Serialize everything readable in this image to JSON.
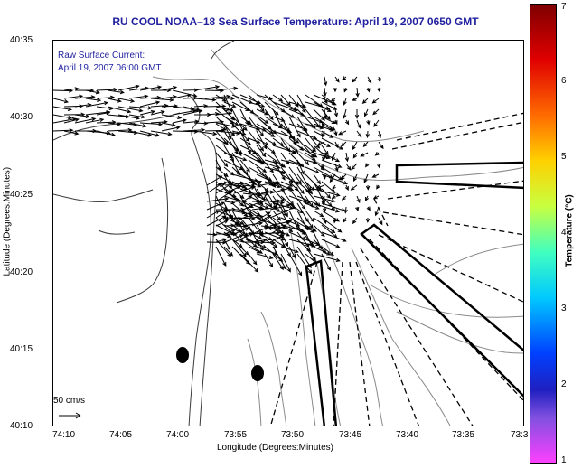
{
  "title": "RU COOL  NOAA–18  Sea Surface Temperature:  April 19, 2007 0650 GMT",
  "overlay": {
    "line1": "Raw Surface Current:",
    "line2": "April 19, 2007 06:00 GMT"
  },
  "scale": {
    "label": "50 cm/s"
  },
  "axes": {
    "xlabel": "Longitude (Degrees:Minutes)",
    "ylabel": "Latitude (Degrees:Minutes)",
    "x_ticks": [
      "74:10",
      "74:05",
      "74:00",
      "73:55",
      "73:50",
      "73:45",
      "73:40",
      "73:35",
      "73:3"
    ],
    "y_ticks": [
      "40:35",
      "40:30",
      "40:25",
      "40:20",
      "40:15",
      "40:10"
    ]
  },
  "colorbar": {
    "label": "Temperature (°C)",
    "ticks": [
      "7",
      "6",
      "5",
      "4",
      "3",
      "2",
      "1"
    ],
    "range": [
      1,
      7
    ]
  },
  "colors": {
    "title": "#1f1f9f",
    "vectors": "#000000",
    "coast": "#555555",
    "bathymetry": "#888888",
    "markers": "#000000"
  }
}
